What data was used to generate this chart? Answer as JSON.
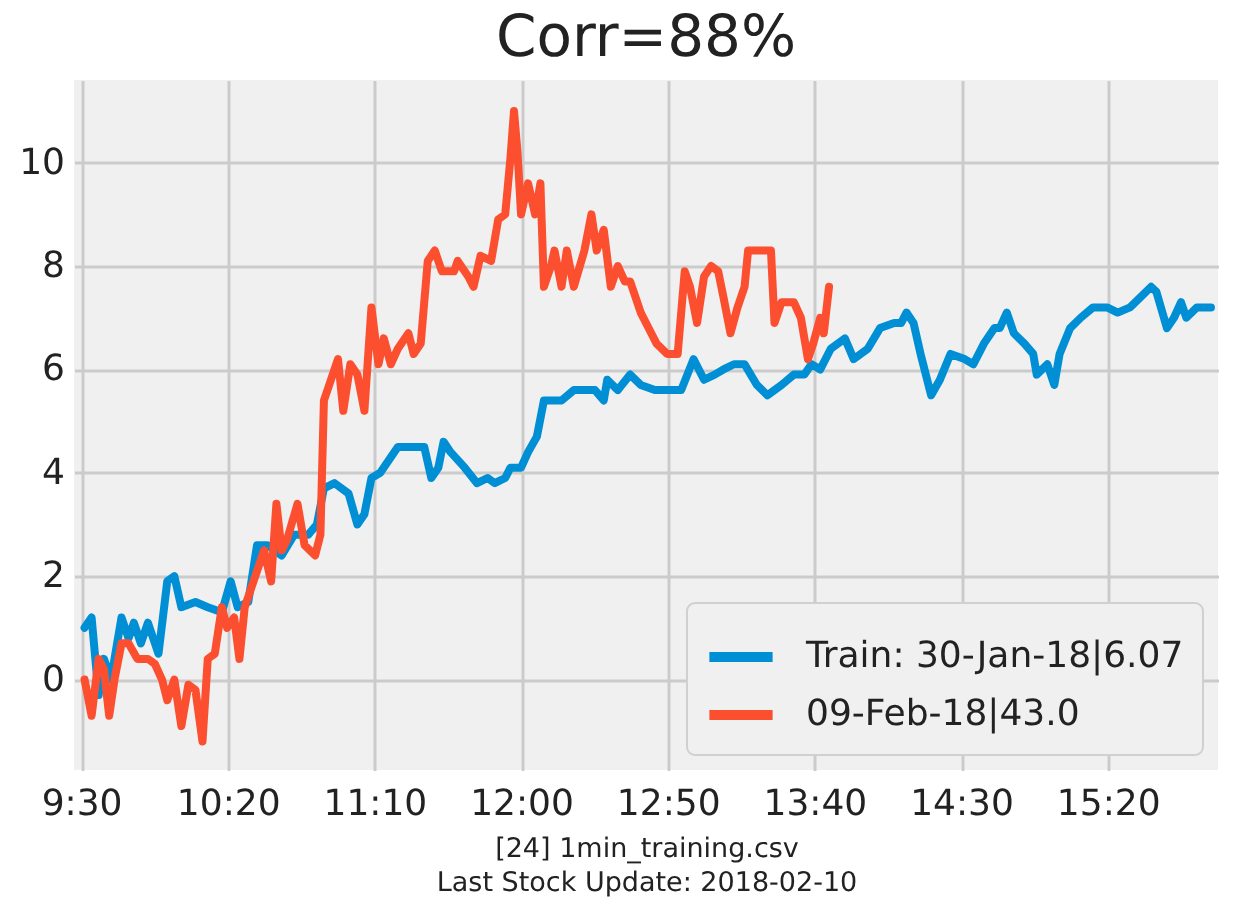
{
  "chart_data": {
    "type": "line",
    "title": "Corr=88%",
    "xlabel": "[24] 1min_training.csv\nLast Stock Update: 2018-02-10",
    "xlim": [
      9.46,
      15.96
    ],
    "ylim": [
      -1.75,
      11.6
    ],
    "xticks": [
      {
        "value": 9.5,
        "label": "9:30"
      },
      {
        "value": 10.3333,
        "label": "10:20"
      },
      {
        "value": 11.1667,
        "label": "11:10"
      },
      {
        "value": 12,
        "label": "12:00"
      },
      {
        "value": 12.8333,
        "label": "12:50"
      },
      {
        "value": 13.6667,
        "label": "13:40"
      },
      {
        "value": 14.5,
        "label": "14:30"
      },
      {
        "value": 15.3333,
        "label": "15:20"
      }
    ],
    "yticks": [
      0,
      2,
      4,
      6,
      8,
      10
    ],
    "grid": true,
    "legend": "bottom right",
    "series": [
      {
        "name": "Train: 30-Jan-18|6.07",
        "color": "#008fd5",
        "x": [
          9.52,
          9.56,
          9.6,
          9.63,
          9.67,
          9.73,
          9.77,
          9.8,
          9.84,
          9.88,
          9.94,
          9.99,
          10.03,
          10.07,
          10.15,
          10.22,
          10.3,
          10.35,
          10.39,
          10.45,
          10.5,
          10.56,
          10.64,
          10.71,
          10.79,
          10.84,
          10.88,
          10.94,
          11.02,
          11.07,
          11.11,
          11.15,
          11.2,
          11.26,
          11.3,
          11.39,
          11.45,
          11.49,
          11.53,
          11.56,
          11.6,
          11.68,
          11.75,
          11.81,
          11.85,
          11.91,
          11.94,
          12.0,
          12.04,
          12.09,
          12.13,
          12.23,
          12.3,
          12.42,
          12.47,
          12.49,
          12.55,
          12.62,
          12.68,
          12.76,
          12.83,
          12.91,
          12.98,
          13.04,
          13.1,
          13.15,
          13.21,
          13.27,
          13.34,
          13.4,
          13.48,
          13.55,
          13.61,
          13.65,
          13.7,
          13.76,
          13.84,
          13.89,
          13.97,
          14.04,
          14.12,
          14.16,
          14.19,
          14.23,
          14.27,
          14.33,
          14.38,
          14.44,
          14.52,
          14.57,
          14.63,
          14.69,
          14.72,
          14.76,
          14.8,
          14.86,
          14.91,
          14.93,
          14.99,
          15.03,
          15.06,
          15.12,
          15.18,
          15.25,
          15.33,
          15.39,
          15.46,
          15.52,
          15.58,
          15.61,
          15.67,
          15.71,
          15.75,
          15.78,
          15.84,
          15.92
        ],
        "values": [
          1.0,
          1.2,
          -0.3,
          0.4,
          0.0,
          1.2,
          0.8,
          1.1,
          0.7,
          1.1,
          0.5,
          1.9,
          2.0,
          1.4,
          1.5,
          1.4,
          1.3,
          1.9,
          1.4,
          1.5,
          2.6,
          2.6,
          2.4,
          2.8,
          2.8,
          3.0,
          3.7,
          3.8,
          3.6,
          3.0,
          3.2,
          3.9,
          4.0,
          4.3,
          4.5,
          4.5,
          4.5,
          3.9,
          4.1,
          4.6,
          4.4,
          4.1,
          3.8,
          3.9,
          3.8,
          3.9,
          4.1,
          4.1,
          4.4,
          4.7,
          5.4,
          5.4,
          5.6,
          5.6,
          5.4,
          5.8,
          5.6,
          5.9,
          5.7,
          5.6,
          5.6,
          5.6,
          6.2,
          5.8,
          5.9,
          6.0,
          6.1,
          6.1,
          5.7,
          5.5,
          5.7,
          5.9,
          5.9,
          6.1,
          6.0,
          6.4,
          6.6,
          6.2,
          6.4,
          6.8,
          6.9,
          6.9,
          7.1,
          6.9,
          6.3,
          5.5,
          5.8,
          6.3,
          6.2,
          6.1,
          6.5,
          6.8,
          6.8,
          7.1,
          6.7,
          6.5,
          6.3,
          5.9,
          6.1,
          5.7,
          6.3,
          6.8,
          7.0,
          7.2,
          7.2,
          7.1,
          7.2,
          7.4,
          7.6,
          7.5,
          6.8,
          7.0,
          7.3,
          7.0,
          7.2,
          7.2
        ]
      },
      {
        "name": "09-Feb-18|43.0",
        "color": "#fc4f30",
        "x": [
          9.52,
          9.56,
          9.6,
          9.63,
          9.66,
          9.69,
          9.73,
          9.77,
          9.82,
          9.88,
          9.92,
          9.96,
          9.99,
          10.03,
          10.07,
          10.11,
          10.15,
          10.19,
          10.22,
          10.26,
          10.3,
          10.33,
          10.37,
          10.4,
          10.43,
          10.47,
          10.5,
          10.54,
          10.58,
          10.61,
          10.64,
          10.67,
          10.73,
          10.77,
          10.83,
          10.86,
          10.88,
          10.92,
          10.96,
          10.99,
          11.03,
          11.07,
          11.11,
          11.15,
          11.19,
          11.22,
          11.26,
          11.3,
          11.36,
          11.39,
          11.43,
          11.47,
          11.51,
          11.55,
          11.62,
          11.64,
          11.7,
          11.73,
          11.77,
          11.83,
          11.87,
          11.91,
          11.94,
          11.96,
          11.98,
          12.0,
          12.04,
          12.08,
          12.11,
          12.13,
          12.17,
          12.19,
          12.23,
          12.26,
          12.3,
          12.36,
          12.4,
          12.43,
          12.47,
          12.51,
          12.55,
          12.59,
          12.62,
          12.68,
          12.74,
          12.77,
          12.83,
          12.89,
          12.93,
          12.96,
          13.0,
          13.04,
          13.08,
          13.12,
          13.15,
          13.19,
          13.23,
          13.27,
          13.29,
          13.34,
          13.42,
          13.44,
          13.48,
          13.55,
          13.59,
          13.63,
          13.66,
          13.7,
          13.72,
          13.75
        ],
        "values": [
          0.0,
          -0.7,
          0.4,
          0.2,
          -0.7,
          0.0,
          0.7,
          0.7,
          0.4,
          0.4,
          0.3,
          0.0,
          -0.4,
          0.0,
          -0.9,
          -0.1,
          -0.2,
          -1.2,
          0.4,
          0.5,
          1.4,
          1.0,
          1.2,
          0.4,
          1.4,
          1.8,
          2.1,
          2.5,
          1.9,
          3.4,
          2.5,
          2.7,
          3.4,
          2.6,
          2.4,
          2.8,
          5.4,
          5.8,
          6.2,
          5.2,
          6.1,
          5.9,
          5.2,
          7.2,
          6.1,
          6.6,
          6.1,
          6.4,
          6.7,
          6.3,
          6.5,
          8.1,
          8.3,
          7.9,
          7.9,
          8.1,
          7.8,
          7.6,
          8.2,
          8.1,
          8.9,
          9.0,
          10.1,
          11.0,
          10.2,
          9.0,
          9.6,
          9.0,
          9.6,
          7.6,
          8.0,
          8.3,
          7.6,
          8.3,
          7.6,
          8.3,
          9.0,
          8.3,
          8.7,
          7.6,
          8.0,
          7.7,
          7.7,
          7.1,
          6.7,
          6.5,
          6.3,
          6.3,
          7.9,
          7.6,
          6.9,
          7.8,
          8.0,
          7.9,
          7.4,
          6.7,
          7.2,
          7.6,
          8.3,
          8.3,
          8.3,
          6.9,
          7.3,
          7.3,
          7.0,
          6.2,
          6.5,
          7.0,
          6.7,
          7.6
        ]
      }
    ]
  }
}
